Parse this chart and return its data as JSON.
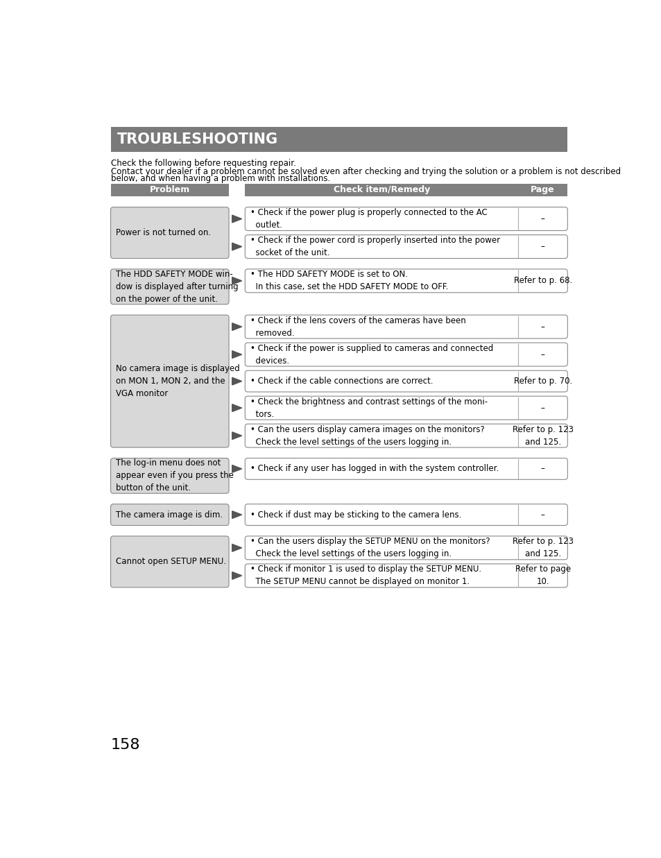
{
  "title": "TROUBLESHOOTING",
  "title_bg": "#7a7a7a",
  "title_color": "#ffffff",
  "page_bg": "#ffffff",
  "intro_line1": "Check the following before requesting repair.",
  "intro_line2": "Contact your dealer if a problem cannot be solved even after checking and trying the solution or a problem is not described",
  "intro_line3": "below, and when having a problem with installations.",
  "header_bg": "#808080",
  "header_color": "#ffffff",
  "col_header_problem": "Problem",
  "col_header_remedy": "Check item/Remedy",
  "col_header_page": "Page",
  "problem_box_bg": "#d8d8d8",
  "remedy_box_bg": "#ffffff",
  "box_border": "#888888",
  "arrow_color": "#555555",
  "page_number": "158",
  "rows": [
    {
      "problem": "Power is not turned on.",
      "remedies": [
        {
          "text": "• Check if the power plug is properly connected to the AC\n  outlet.",
          "page": "–"
        },
        {
          "text": "• Check if the power cord is properly inserted into the power\n  socket of the unit.",
          "page": "–"
        }
      ]
    },
    {
      "problem": "The HDD SAFETY MODE win-\ndow is displayed after turning\non the power of the unit.",
      "remedies": [
        {
          "text": "• The HDD SAFETY MODE is set to ON.\n  In this case, set the HDD SAFETY MODE to OFF.",
          "page": "Refer to p. 68."
        }
      ]
    },
    {
      "problem": "No camera image is displayed\non MON 1, MON 2, and the\nVGA monitor",
      "remedies": [
        {
          "text": "• Check if the lens covers of the cameras have been\n  removed.",
          "page": "–"
        },
        {
          "text": "• Check if the power is supplied to cameras and connected\n  devices.",
          "page": "–"
        },
        {
          "text": "• Check if the cable connections are correct.",
          "page": "Refer to p. 70."
        },
        {
          "text": "• Check the brightness and contrast settings of the moni-\n  tors.",
          "page": "–"
        },
        {
          "text": "• Can the users display camera images on the monitors?\n  Check the level settings of the users logging in.",
          "page": "Refer to p. 123\nand 125."
        }
      ]
    },
    {
      "problem": "The log-in menu does not\nappear even if you press the\nbutton of the unit.",
      "remedies": [
        {
          "text": "• Check if any user has logged in with the system controller.",
          "page": "–"
        }
      ]
    },
    {
      "problem": "The camera image is dim.",
      "remedies": [
        {
          "text": "• Check if dust may be sticking to the camera lens.",
          "page": "–"
        }
      ]
    },
    {
      "problem": "Cannot open SETUP MENU.",
      "remedies": [
        {
          "text": "• Can the users display the SETUP MENU on the monitors?\n  Check the level settings of the users logging in.",
          "page": "Refer to p. 123\nand 125."
        },
        {
          "text": "• Check if monitor 1 is used to display the SETUP MENU.\n  The SETUP MENU cannot be displayed on monitor 1.",
          "page": "Refer to page\n10."
        }
      ]
    }
  ]
}
